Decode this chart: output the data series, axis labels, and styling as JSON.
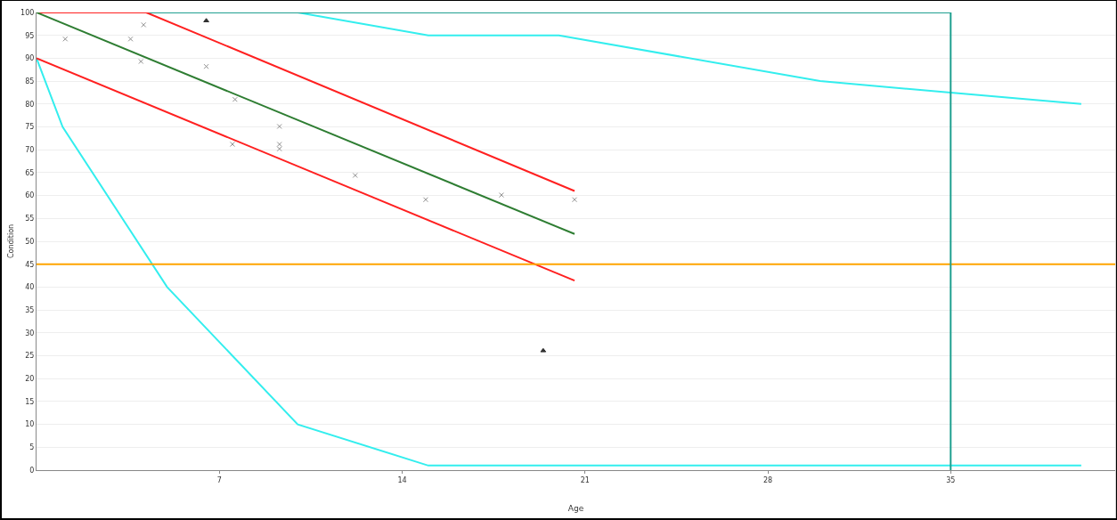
{
  "chart_data": {
    "type": "line",
    "xlabel": "Age",
    "ylabel": "Condition",
    "xlim": [
      0,
      41.3
    ],
    "xticks": [
      7,
      14,
      21,
      28,
      35
    ],
    "ylim": [
      0,
      100
    ],
    "yticks": [
      0,
      5,
      10,
      15,
      20,
      25,
      30,
      35,
      40,
      45,
      50,
      55,
      60,
      65,
      70,
      75,
      80,
      85,
      90,
      95,
      100
    ],
    "grid": "y",
    "marker": "none",
    "line_style": "solid",
    "series": [
      {
        "color": "#33eeee",
        "x": [
          0,
          10,
          15,
          20,
          30,
          35,
          40
        ],
        "values": [
          100,
          100,
          95,
          95,
          85,
          82.5,
          80
        ]
      },
      {
        "color": "#33eeee",
        "x": [
          0,
          1,
          5,
          10,
          15,
          40
        ],
        "values": [
          90,
          75,
          40,
          10,
          1,
          1
        ]
      },
      {
        "color": "#20a090",
        "x": [
          0,
          35
        ],
        "values": [
          100,
          100
        ]
      },
      {
        "color": "#ff2020",
        "x": [
          0,
          4.2,
          20.6
        ],
        "values": [
          100,
          100,
          61
        ]
      },
      {
        "color": "#ff2020",
        "x": [
          0,
          20.6
        ],
        "values": [
          90,
          41.4
        ]
      },
      {
        "color": "#2e7d32",
        "x": [
          0,
          20.6
        ],
        "values": [
          100,
          51.6
        ]
      },
      {
        "type": "scatter",
        "marker": "cross",
        "color": "#909090",
        "x": [
          1.1,
          3.6,
          4.1,
          4.0,
          6.5,
          7.6,
          7.5,
          9.3,
          9.3,
          9.3,
          12.2,
          14.9,
          17.8,
          20.6
        ],
        "values": [
          94.2,
          94.2,
          97.3,
          89.3,
          88.2,
          81.0,
          71.2,
          75.1,
          71.2,
          70.2,
          64.4,
          59.1,
          60.1,
          59.1
        ]
      },
      {
        "type": "scatter",
        "marker": "triangle",
        "color": "#303030",
        "x": [
          6.5,
          19.4
        ],
        "values": [
          98.2,
          26.1
        ]
      }
    ],
    "ref_lines": [
      {
        "axis": "y",
        "value": 45,
        "color": "#ffa500",
        "line_style": "solid"
      },
      {
        "axis": "x",
        "value": 35,
        "color": "#20a090",
        "line_style": "solid"
      }
    ]
  }
}
